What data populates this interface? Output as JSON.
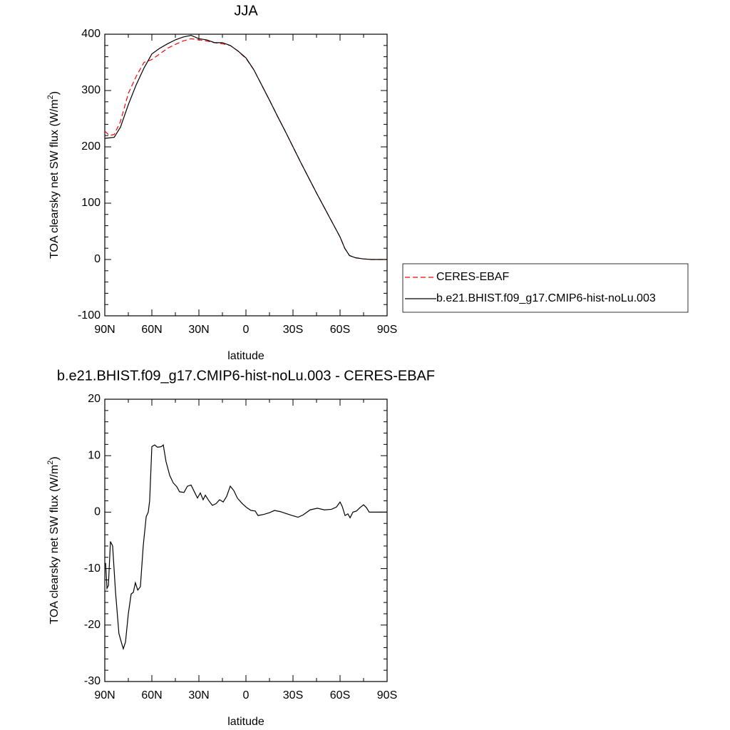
{
  "chart_data": [
    {
      "type": "line",
      "title": "JJA",
      "xlabel": "latitude",
      "ylabel": [
        "TOA clearsky net SW flux (W/m",
        "2",
        ")"
      ],
      "x": [
        90,
        87,
        84,
        80,
        75,
        70,
        65,
        60,
        55,
        50,
        45,
        40,
        35,
        30,
        25,
        20,
        15,
        10,
        5,
        0,
        -5,
        -10,
        -15,
        -20,
        -25,
        -30,
        -35,
        -40,
        -45,
        -50,
        -55,
        -60,
        -63,
        -66,
        -70,
        -75,
        -80,
        -85,
        -90
      ],
      "series": [
        {
          "name": "CERES-EBAF",
          "color": "#ff0000",
          "dashed": true,
          "values": [
            228,
            220,
            222,
            245,
            295,
            325,
            350,
            355,
            365,
            375,
            382,
            388,
            392,
            390,
            388,
            385,
            383,
            380,
            370,
            357,
            337,
            310,
            283,
            255,
            228,
            200,
            172,
            145,
            118,
            92,
            66,
            40,
            20,
            7,
            3,
            1,
            0,
            0,
            0
          ]
        },
        {
          "name": "b.e21.BHIST.f09_g17.CMIP6-hist-noLu.003",
          "color": "#000000",
          "dashed": false,
          "values": [
            215,
            216,
            217,
            235,
            275,
            310,
            340,
            365,
            375,
            383,
            390,
            395,
            398,
            392,
            390,
            385,
            385,
            380,
            370,
            358,
            337,
            310,
            283,
            255,
            228,
            200,
            172,
            145,
            118,
            92,
            66,
            40,
            20,
            7,
            3,
            1,
            0,
            0,
            0
          ]
        }
      ],
      "xlim": [
        90,
        -90
      ],
      "xticks": [
        {
          "value": 90,
          "label": "90N"
        },
        {
          "value": 60,
          "label": "60N"
        },
        {
          "value": 30,
          "label": "30N"
        },
        0,
        {
          "value": -30,
          "label": "30S"
        },
        {
          "value": -60,
          "label": "60S"
        },
        {
          "value": -90,
          "label": "90S"
        }
      ],
      "ylim": [
        -100,
        400
      ],
      "yticks": [
        400,
        300,
        200,
        100,
        0,
        -100
      ],
      "minor_ticks": {
        "x": 1,
        "y": 4
      },
      "legend": "right"
    },
    {
      "type": "line",
      "title": "b.e21.BHIST.f09_g17.CMIP6-hist-noLu.003 - CERES-EBAF",
      "xlabel": "latitude",
      "ylabel": [
        "TOA clearsky net SW flux (W/m",
        "2",
        ")"
      ],
      "x": [
        89.5,
        88.6,
        87.7,
        86.4,
        85,
        83.2,
        81,
        79.5,
        78.2,
        76.8,
        75,
        73.2,
        71.8,
        70.5,
        69,
        67.3,
        65.5,
        63.6,
        62.3,
        61.4,
        60,
        58.2,
        56.4,
        54,
        52.7,
        51,
        48.6,
        46.4,
        44.1,
        42.3,
        39.5,
        37.3,
        35,
        32.7,
        30.9,
        29.1,
        27.3,
        25.9,
        23.6,
        21.4,
        19.1,
        16.8,
        14.5,
        12.3,
        10,
        7.7,
        5.5,
        2.3,
        -0.5,
        -3.2,
        -5.9,
        -7.7,
        -11.4,
        -15,
        -18.2,
        -21.8,
        -25,
        -29.5,
        -33.2,
        -36.4,
        -40.9,
        -45.5,
        -50,
        -54.5,
        -57.7,
        -60,
        -61.4,
        -63.2,
        -65,
        -66.4,
        -68.2,
        -70.5,
        -72.7,
        -75,
        -76.8,
        -78.6,
        -90
      ],
      "series": [
        {
          "name": "b.e21.BHIST.f09_g17.CMIP6-hist-noLu.003 - CERES-EBAF",
          "color": "#000000",
          "dashed": false,
          "values": [
            -9,
            -13.5,
            -13,
            -5.2,
            -6,
            -14,
            -21.5,
            -23,
            -24.2,
            -23,
            -18,
            -14.5,
            -14.2,
            -12.5,
            -13.8,
            -13.2,
            -6,
            -0.8,
            0,
            2,
            11.6,
            11.9,
            11.5,
            11.6,
            11.9,
            9,
            6.5,
            5.2,
            4.5,
            3.6,
            3.5,
            4.6,
            4.8,
            3.5,
            2.5,
            3.4,
            2.2,
            3,
            2,
            1.2,
            1.5,
            2.2,
            1.8,
            2.8,
            4.6,
            3.8,
            2.5,
            1.5,
            0.8,
            0.3,
            0.2,
            -0.6,
            -0.4,
            -0.1,
            0.3,
            0.1,
            -0.2,
            -0.6,
            -0.9,
            -0.5,
            0.4,
            0.7,
            0.4,
            0.5,
            0.9,
            1.8,
            1,
            -0.6,
            -0.3,
            -1,
            0,
            0.2,
            0.8,
            1.3,
            0.8,
            0,
            0
          ]
        }
      ],
      "xlim": [
        90,
        -90
      ],
      "xticks": [
        {
          "value": 90,
          "label": "90N"
        },
        {
          "value": 60,
          "label": "60N"
        },
        {
          "value": 30,
          "label": "30N"
        },
        0,
        {
          "value": -30,
          "label": "30S"
        },
        {
          "value": -60,
          "label": "60S"
        },
        {
          "value": -90,
          "label": "90S"
        }
      ],
      "ylim": [
        -30,
        20
      ],
      "yticks": [
        20,
        10,
        0,
        -10,
        -20,
        -30
      ],
      "minor_ticks": {
        "x": 1,
        "y": 4
      }
    }
  ]
}
